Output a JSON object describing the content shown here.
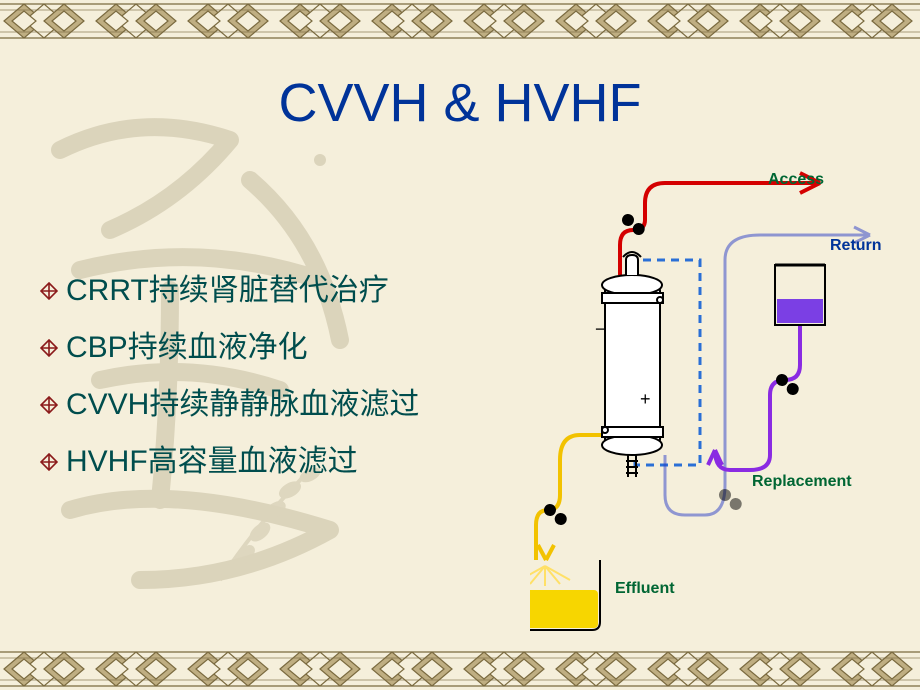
{
  "title": {
    "text": "CVVH & HVHF",
    "color": "#003399"
  },
  "bullets": {
    "text_color": "#004d4d",
    "icon_color": "#8b1a1a",
    "items": [
      {
        "en": "CRRT",
        "zh": "持续肾脏替代治疗"
      },
      {
        "en": "CBP",
        "zh": "持续血液净化"
      },
      {
        "en": "CVVH",
        "zh": "持续静静脉血液滤过"
      },
      {
        "en": "HVHF",
        "zh": "高容量血液滤过"
      }
    ]
  },
  "diagram": {
    "labels": {
      "access": {
        "text": "Access",
        "color": "#006633"
      },
      "return": {
        "text": "Return",
        "color": "#003399"
      },
      "replacement": {
        "text": "Replacement",
        "color": "#006633"
      },
      "effluent": {
        "text": "Effluent",
        "color": "#006633"
      }
    },
    "colors": {
      "access_line": "#d40000",
      "return_line": "#2a3dc7",
      "effluent_line": "#f2c200",
      "replacement_line": "#8a2be2",
      "dialysate_dash": "#2a6fd6",
      "pump_black": "#000000",
      "filter_fill": "#ffffff",
      "filter_stroke": "#000000",
      "effluent_fluid": "#f7d600",
      "replacement_fluid": "#7b3fe4",
      "spray": "#ffe066"
    }
  },
  "theme": {
    "background": "#f5efdb",
    "border_fill": "#bfae82",
    "border_stroke": "#7a6a3f",
    "watermark_color": "#6a5c32"
  }
}
